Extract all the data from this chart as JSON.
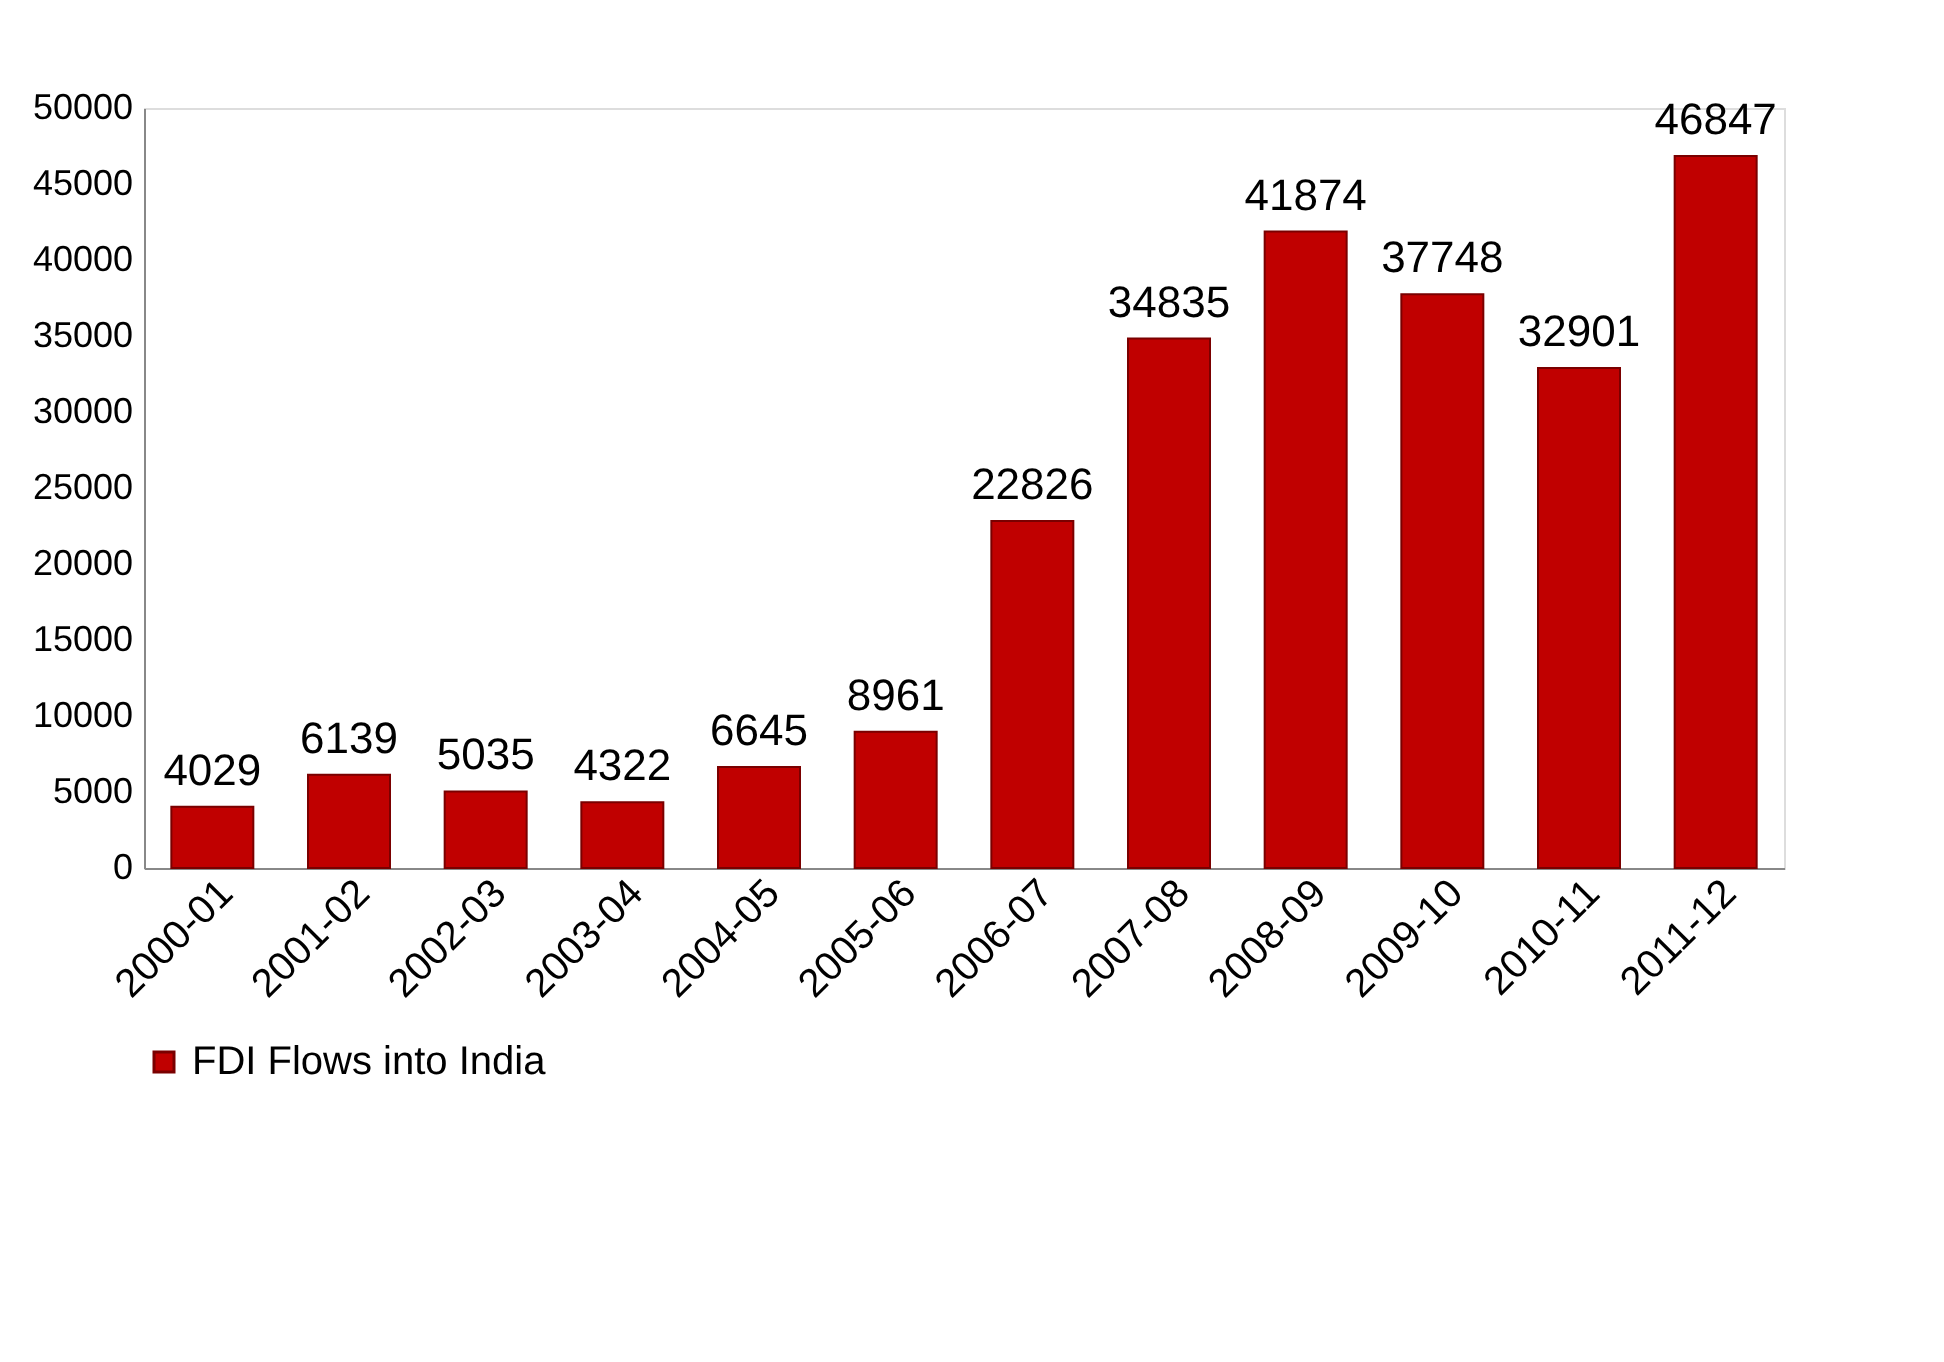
{
  "chart_data": {
    "type": "bar",
    "categories": [
      "2000-01",
      "2001-02",
      "2002-03",
      "2003-04",
      "2004-05",
      "2005-06",
      "2006-07",
      "2007-08",
      "2008-09",
      "2009-10",
      "2010-11",
      "2011-12"
    ],
    "series": [
      {
        "name": "FDI Flows into India",
        "color": "#c00000",
        "values": [
          4029,
          6139,
          5035,
          4322,
          6645,
          8961,
          22826,
          34835,
          41874,
          37748,
          32901,
          46847
        ]
      }
    ],
    "ylim": [
      0,
      50000
    ],
    "yticks": [
      0,
      5000,
      10000,
      15000,
      20000,
      25000,
      30000,
      35000,
      40000,
      45000,
      50000
    ],
    "data_labels": true,
    "grid": false,
    "legend": "bottom"
  }
}
